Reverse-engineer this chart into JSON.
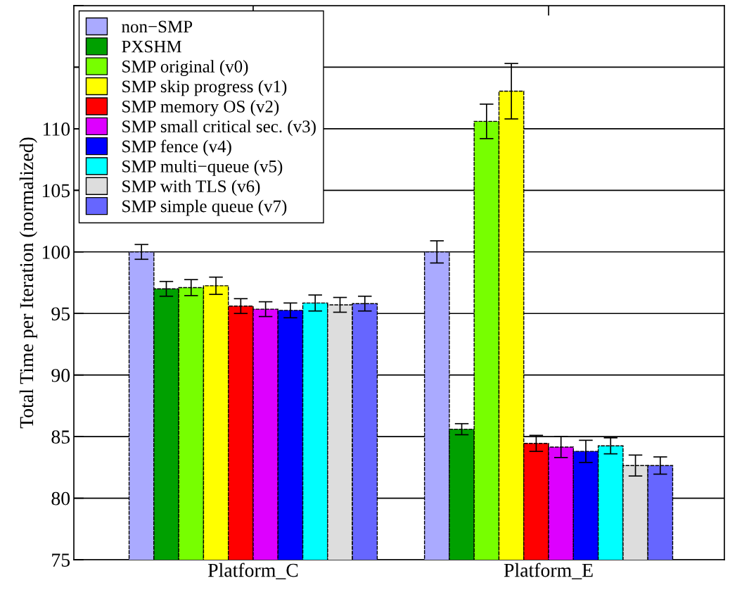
{
  "chart_data": {
    "type": "bar",
    "ylabel": "Total Time per Iteration (normalized)",
    "categories": [
      "Platform_C",
      "Platform_E"
    ],
    "ylim": [
      75,
      120
    ],
    "yticks": [
      75,
      80,
      85,
      90,
      95,
      100,
      105,
      110,
      {
        "value": 115,
        "label": null
      },
      {
        "value": 120,
        "label": null
      }
    ],
    "grid": "y",
    "legend": "top left",
    "series": [
      {
        "name": "non−SMP",
        "color": "#aaaaff",
        "values": [
          100.0,
          100.0
        ],
        "errors": [
          0.6,
          0.9
        ]
      },
      {
        "name": "PXSHM",
        "color": "#00a000",
        "values": [
          97.0,
          85.6
        ],
        "errors": [
          0.6,
          0.45
        ]
      },
      {
        "name": "SMP original (v0)",
        "color": "#77ff00",
        "values": [
          97.1,
          110.6
        ],
        "errors": [
          0.65,
          1.4
        ]
      },
      {
        "name": "SMP skip progress (v1)",
        "color": "#ffff00",
        "values": [
          97.25,
          113.05
        ],
        "errors": [
          0.7,
          2.25
        ]
      },
      {
        "name": "SMP memory OS (v2)",
        "color": "#ff0000",
        "values": [
          95.6,
          84.45
        ],
        "errors": [
          0.6,
          0.65
        ]
      },
      {
        "name": "SMP small critical sec. (v3)",
        "color": "#dd00ff",
        "values": [
          95.35,
          84.15
        ],
        "errors": [
          0.6,
          0.85
        ]
      },
      {
        "name": "SMP fence (v4)",
        "color": "#0000ff",
        "values": [
          95.25,
          83.8
        ],
        "errors": [
          0.6,
          0.9
        ]
      },
      {
        "name": "SMP multi−queue (v5)",
        "color": "#00ffff",
        "values": [
          95.85,
          84.25
        ],
        "errors": [
          0.65,
          0.65
        ]
      },
      {
        "name": "SMP with TLS (v6)",
        "color": "#dddddd",
        "values": [
          95.7,
          82.65
        ],
        "errors": [
          0.6,
          0.85
        ]
      },
      {
        "name": "SMP simple queue (v7)",
        "color": "#6666ff",
        "values": [
          95.8,
          82.65
        ],
        "errors": [
          0.6,
          0.7
        ]
      }
    ]
  }
}
